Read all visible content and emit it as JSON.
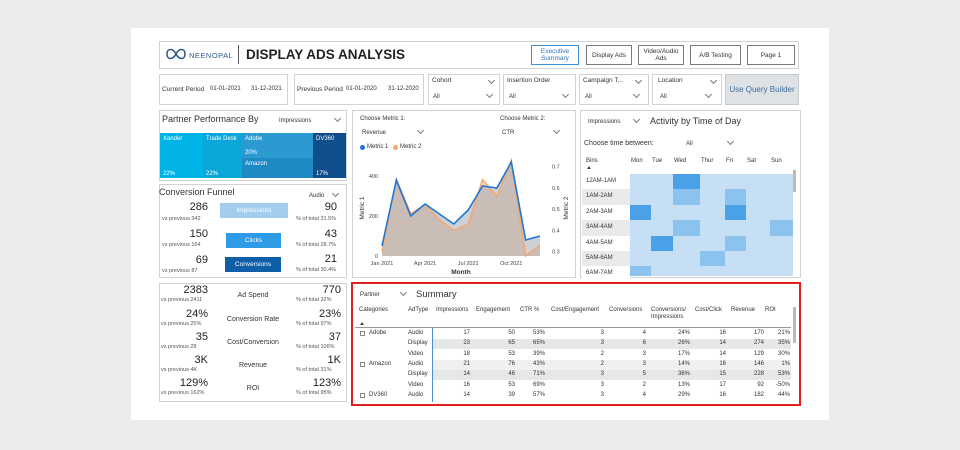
{
  "header": {
    "brand": "NEENOPAL",
    "title": "DISPLAY ADS ANALYSIS",
    "nav": [
      "Executive Summary",
      "Display Ads",
      "Video/Audio Ads",
      "A/B Testing",
      "Page 1"
    ]
  },
  "filters": {
    "current_period_label": "Current Period",
    "current_start": "01-01-2021",
    "current_end": "31-12-2021",
    "previous_period_label": "Previous Period",
    "previous_start": "01-01-2020",
    "previous_end": "31-12-2020",
    "cohort_label": "Cohort",
    "cohort_value": "All",
    "insertion_label": "Insertion Order",
    "insertion_value": "All",
    "campaign_label": "Campaign T...",
    "campaign_value": "All",
    "location_label": "Location",
    "location_value": "All",
    "query_builder": "Use Query Builder"
  },
  "partner_perf": {
    "title": "Partner Performance By",
    "metric": "Impressions",
    "tiles": [
      {
        "name": "Xander",
        "pct": "22%"
      },
      {
        "name": "Trade Desk",
        "pct": "22%"
      },
      {
        "name": "Adobe",
        "pct": "20%"
      },
      {
        "name": "Amazon",
        "pct": ""
      },
      {
        "name": "DV360",
        "pct": "17%"
      }
    ]
  },
  "funnel": {
    "title": "Conversion Funnel",
    "filter": "Audio",
    "rows": [
      {
        "value": "286",
        "prev": "vs previous  342",
        "label": "Impressions",
        "right": "90",
        "pct": "% of total  31.5%"
      },
      {
        "value": "150",
        "prev": "vs previous  164",
        "label": "Clicks",
        "right": "43",
        "pct": "% of total  28.7%"
      },
      {
        "value": "69",
        "prev": "vs previous  87",
        "label": "Conversions",
        "right": "21",
        "pct": "% of total  30.4%"
      }
    ]
  },
  "kpis": [
    {
      "value": "2383",
      "prev": "vs previous 2411",
      "label": "Ad Spend",
      "right": "770",
      "pct": "% of total   32%"
    },
    {
      "value": "24%",
      "prev": "vs previous  25%",
      "label": "Conversion Rate",
      "right": "23%",
      "pct": "% of total   97%"
    },
    {
      "value": "35",
      "prev": "vs previous   28",
      "label": "Cost/Conversion",
      "right": "37",
      "pct": "% of total  106%"
    },
    {
      "value": "3K",
      "prev": "vs previous  4K",
      "label": "Revenue",
      "right": "1K",
      "pct": "% of total   31%"
    },
    {
      "value": "129%",
      "prev": "vs previous 162%",
      "label": "ROI",
      "right": "123%",
      "pct": "% of total   95%"
    }
  ],
  "metric_chart": {
    "metric1_label": "Choose Metric 1:",
    "metric1_value": "Revenue",
    "metric2_label": "Choose Metric 2:",
    "metric2_value": "CTR",
    "legend1": "Metric 1",
    "legend2": "Metric 2",
    "xlabel": "Month",
    "ylabel_left": "Metric 1",
    "ylabel_right": "Metric 2",
    "colors": {
      "metric1": "#1f77d4",
      "metric2": "#f5a66b"
    }
  },
  "chart_data": {
    "type": "area",
    "x": [
      "Jan 2021",
      "Feb 2021",
      "Mar 2021",
      "Apr 2021",
      "May 2021",
      "Jun 2021",
      "Jul 2021",
      "Aug 2021",
      "Sep 2021",
      "Oct 2021",
      "Nov 2021",
      "Dec 2021"
    ],
    "x_ticks": [
      "Jan 2021",
      "Apr 2021",
      "Jul 2021",
      "Oct 2021"
    ],
    "series": [
      {
        "name": "Metric 1",
        "axis": "left",
        "values": [
          50,
          380,
          200,
          260,
          210,
          160,
          230,
          350,
          340,
          470,
          80,
          100
        ]
      },
      {
        "name": "Metric 2",
        "axis": "right",
        "values": [
          0.3,
          0.64,
          0.48,
          0.52,
          0.45,
          0.4,
          0.43,
          0.64,
          0.56,
          0.73,
          0.28,
          0.33
        ]
      }
    ],
    "ylim_left": [
      0,
      500
    ],
    "yticks_left": [
      0,
      200,
      400
    ],
    "ylim_right": [
      0.28,
      0.75
    ],
    "yticks_right": [
      0.3,
      0.4,
      0.5,
      0.6,
      0.7
    ]
  },
  "activity": {
    "metric": "Impressions",
    "title": "Activity by Time of Day",
    "between_label": "Choose time between:",
    "between_value": "All",
    "col_header": "Bins",
    "days": [
      "Mon",
      "Tue",
      "Wed",
      "Thur",
      "Fri",
      "Sat",
      "Sun"
    ],
    "bins": [
      "12AM-1AM",
      "1AM-2AM",
      "2AM-3AM",
      "3AM-4AM",
      "4AM-5AM",
      "5AM-6AM",
      "6AM-7AM"
    ],
    "intensity": [
      [
        1,
        1,
        3,
        1,
        1,
        1,
        1
      ],
      [
        1,
        1,
        2,
        1,
        2,
        1,
        1
      ],
      [
        3,
        1,
        1,
        1,
        3,
        1,
        1
      ],
      [
        1,
        1,
        2,
        1,
        1,
        1,
        2
      ],
      [
        1,
        3,
        1,
        1,
        2,
        1,
        1
      ],
      [
        1,
        1,
        1,
        2,
        1,
        1,
        1
      ],
      [
        2,
        1,
        1,
        1,
        1,
        1,
        1
      ]
    ]
  },
  "summary": {
    "group_by": "Partner",
    "title": "Summary",
    "columns": [
      "Categories",
      "AdType",
      "Impressions",
      "Engagement",
      "CTR %",
      "Cost/Engagement",
      "Conversions",
      "Conversions/ Impressions",
      "Cost/Click",
      "Revenue",
      "ROI"
    ],
    "rows": [
      {
        "cat": "Adobe",
        "adtype": "Audio",
        "imp": "17",
        "eng": "50",
        "ctr": "53%",
        "ce": "3",
        "conv": "4",
        "ci": "24%",
        "cc": "16",
        "rev": "170",
        "roi": "21%"
      },
      {
        "cat": "",
        "adtype": "Display",
        "imp": "23",
        "eng": "65",
        "ctr": "65%",
        "ce": "3",
        "conv": "6",
        "ci": "26%",
        "cc": "14",
        "rev": "274",
        "roi": "35%"
      },
      {
        "cat": "",
        "adtype": "Video",
        "imp": "18",
        "eng": "53",
        "ctr": "39%",
        "ce": "2",
        "conv": "3",
        "ci": "17%",
        "cc": "14",
        "rev": "129",
        "roi": "30%"
      },
      {
        "cat": "Amazon",
        "adtype": "Audio",
        "imp": "21",
        "eng": "76",
        "ctr": "43%",
        "ce": "2",
        "conv": "3",
        "ci": "14%",
        "cc": "16",
        "rev": "146",
        "roi": "1%"
      },
      {
        "cat": "",
        "adtype": "Display",
        "imp": "14",
        "eng": "46",
        "ctr": "71%",
        "ce": "3",
        "conv": "5",
        "ci": "36%",
        "cc": "15",
        "rev": "228",
        "roi": "53%"
      },
      {
        "cat": "",
        "adtype": "Video",
        "imp": "16",
        "eng": "53",
        "ctr": "69%",
        "ce": "3",
        "conv": "2",
        "ci": "13%",
        "cc": "17",
        "rev": "92",
        "roi": "-50%"
      },
      {
        "cat": "DV360",
        "adtype": "Audio",
        "imp": "14",
        "eng": "39",
        "ctr": "57%",
        "ce": "3",
        "conv": "4",
        "ci": "29%",
        "cc": "16",
        "rev": "182",
        "roi": "44%"
      }
    ],
    "highlight_color": "#e02020"
  }
}
